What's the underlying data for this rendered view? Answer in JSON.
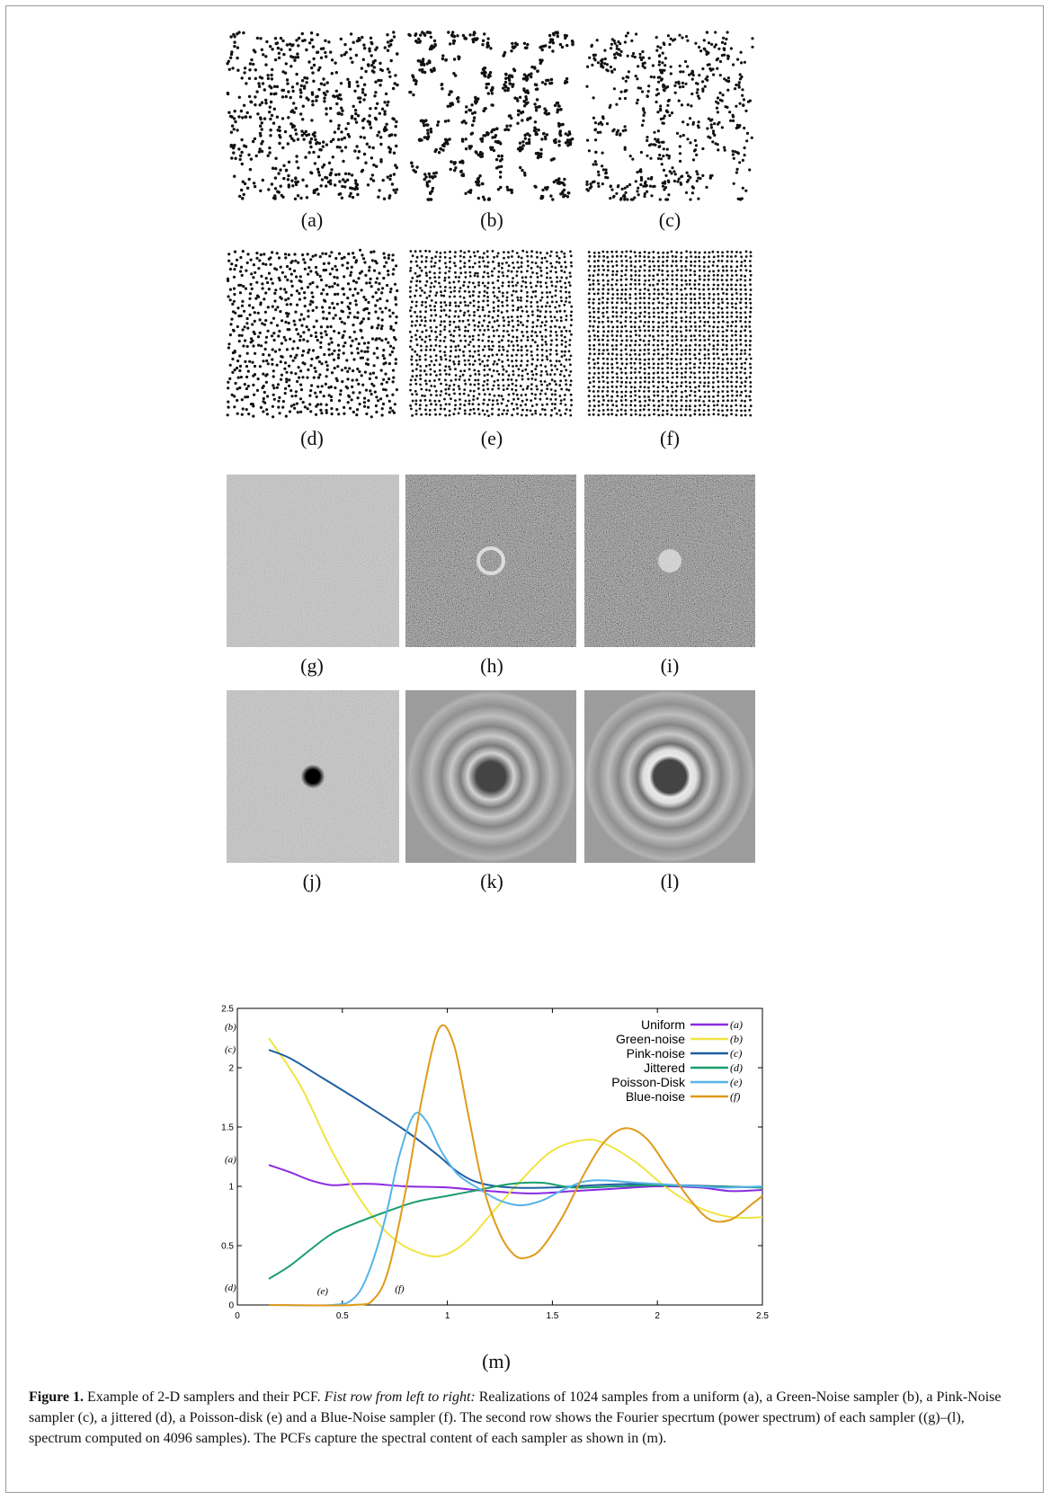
{
  "panels": {
    "a": "(a)",
    "b": "(b)",
    "c": "(c)",
    "d": "(d)",
    "e": "(e)",
    "f": "(f)",
    "g": "(g)",
    "h": "(h)",
    "i": "(i)",
    "j": "(j)",
    "k": "(k)",
    "l": "(l)",
    "m": "(m)"
  },
  "samplers": {
    "a": "uniform",
    "b": "Green-Noise sampler",
    "c": "Pink-Noise sampler",
    "d": "jittered",
    "e": "Poisson-disk",
    "f": "Blue-Noise sampler"
  },
  "caption": {
    "figure_label": "Figure 1.",
    "sentence1": " Example of 2-D samplers and their PCF. ",
    "italic_lead": "Fist row from left to right:",
    "rest": " Realizations of 1024 samples from a uniform (a), a Green-Noise sampler (b), a Pink-Noise sampler (c), a jittered (d), a Poisson-disk (e) and a Blue-Noise sampler (f). The second row shows the Fourier specrtum (power spectrum) of each sampler ((g)–(l), spectrum computed on 4096 samples). The PCFs capture the spectral content of each sampler as shown in (m)."
  },
  "chart_data": {
    "type": "line",
    "xlabel": "",
    "ylabel": "",
    "xlim": [
      0,
      2.5
    ],
    "ylim": [
      0,
      2.5
    ],
    "xticks": [
      "0",
      "0.5",
      "1",
      "1.5",
      "2",
      "2.5"
    ],
    "yticks": [
      "0",
      "0.5",
      "1",
      "1.5",
      "2",
      "2.5"
    ],
    "legend_position": "top-right",
    "series": [
      {
        "name": "Uniform",
        "tag": "(a)",
        "color": "#8a2be2",
        "x": [
          0.15,
          0.25,
          0.35,
          0.45,
          0.55,
          0.65,
          0.8,
          1.0,
          1.2,
          1.4,
          1.6,
          1.8,
          2.0,
          2.2,
          2.35,
          2.5
        ],
        "y": [
          1.18,
          1.12,
          1.05,
          1.01,
          1.02,
          1.02,
          1.0,
          0.99,
          0.96,
          0.94,
          0.96,
          0.98,
          1.0,
          0.99,
          0.96,
          0.97
        ]
      },
      {
        "name": "Green-noise",
        "tag": "(b)",
        "color": "#f0e442",
        "x": [
          0.15,
          0.3,
          0.45,
          0.6,
          0.75,
          0.9,
          1.0,
          1.1,
          1.2,
          1.35,
          1.5,
          1.65,
          1.75,
          1.9,
          2.05,
          2.2,
          2.35,
          2.5
        ],
        "y": [
          2.25,
          1.85,
          1.3,
          0.85,
          0.55,
          0.42,
          0.43,
          0.55,
          0.75,
          1.05,
          1.3,
          1.39,
          1.36,
          1.2,
          0.98,
          0.82,
          0.74,
          0.74
        ]
      },
      {
        "name": "Pink-noise",
        "tag": "(c)",
        "color": "#1f5fa0",
        "x": [
          0.15,
          0.25,
          0.4,
          0.6,
          0.8,
          0.95,
          1.05,
          1.15,
          1.3,
          1.5,
          1.7,
          1.9,
          2.1,
          2.3,
          2.5
        ],
        "y": [
          2.15,
          2.08,
          1.92,
          1.7,
          1.47,
          1.27,
          1.12,
          1.03,
          0.99,
          0.99,
          1.01,
          1.02,
          1.01,
          1.0,
          0.99
        ]
      },
      {
        "name": "Jittered",
        "tag": "(d)",
        "color": "#1a9e6b",
        "x": [
          0.15,
          0.25,
          0.35,
          0.45,
          0.55,
          0.7,
          0.85,
          1.0,
          1.15,
          1.3,
          1.45,
          1.6,
          1.8,
          2.0,
          2.2,
          2.5
        ],
        "y": [
          0.22,
          0.33,
          0.47,
          0.6,
          0.68,
          0.78,
          0.87,
          0.92,
          0.97,
          1.02,
          1.03,
          0.99,
          1.0,
          1.01,
          1.0,
          0.99
        ]
      },
      {
        "name": "Poisson-Disk",
        "tag": "(e)",
        "color": "#56b4e9",
        "x": [
          0.15,
          0.45,
          0.55,
          0.62,
          0.7,
          0.77,
          0.84,
          0.9,
          0.97,
          1.05,
          1.15,
          1.25,
          1.35,
          1.45,
          1.55,
          1.65,
          1.75,
          1.9,
          2.1,
          2.3,
          2.5
        ],
        "y": [
          0.0,
          0.0,
          0.05,
          0.25,
          0.7,
          1.25,
          1.6,
          1.55,
          1.3,
          1.1,
          0.98,
          0.88,
          0.84,
          0.88,
          0.97,
          1.04,
          1.05,
          1.03,
          1.01,
          0.99,
          1.0
        ]
      },
      {
        "name": "Blue-noise",
        "tag": "(f)",
        "color": "#e09a1a",
        "x": [
          0.15,
          0.55,
          0.65,
          0.72,
          0.8,
          0.88,
          0.96,
          1.03,
          1.1,
          1.17,
          1.25,
          1.32,
          1.38,
          1.45,
          1.55,
          1.65,
          1.75,
          1.85,
          1.95,
          2.05,
          2.15,
          2.25,
          2.35,
          2.45,
          2.5
        ],
        "y": [
          0.0,
          0.0,
          0.05,
          0.3,
          0.95,
          1.75,
          2.33,
          2.2,
          1.6,
          1.0,
          0.6,
          0.42,
          0.4,
          0.48,
          0.75,
          1.1,
          1.38,
          1.49,
          1.4,
          1.15,
          0.9,
          0.72,
          0.72,
          0.85,
          0.92
        ]
      }
    ],
    "annotations": [
      "(b)",
      "(c)",
      "(a)",
      "(d)",
      "(e)",
      "(f)"
    ]
  }
}
